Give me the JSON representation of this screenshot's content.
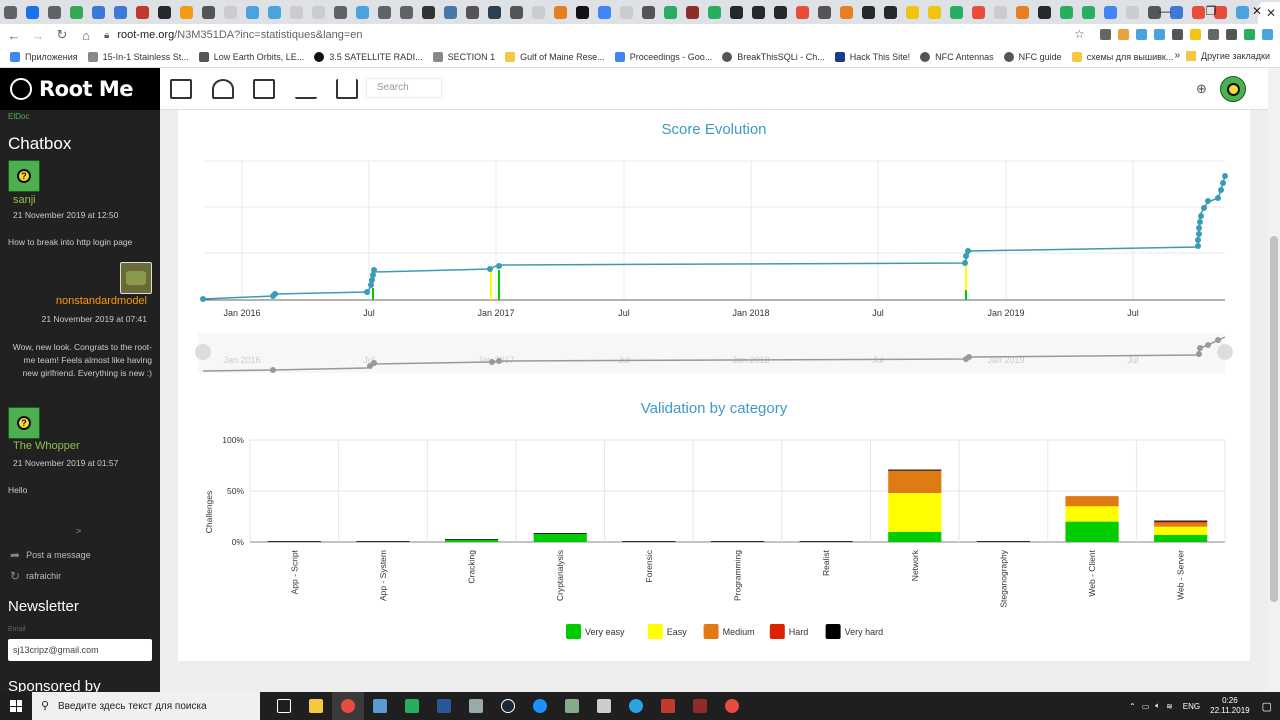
{
  "browser": {
    "url_host": "root-me.org",
    "url_path": "/N3M351DA?inc=statistiques&lang=en",
    "bookmarks": [
      "Приложения",
      "15-In-1 Stainless St...",
      "Low Earth Orbits, LE...",
      "3.5 SATELLITE RADI...",
      "SECTION 1",
      "Gulf of Maine Rese...",
      "Proceedings - Goo...",
      "BreakThisSQLi - Ch...",
      "Hack This Site!",
      "NFC Antennas",
      "NFC guide",
      "схемы для вышивк..."
    ],
    "bookmarks_more": "»",
    "bookmarks_other": "Другие закладки",
    "window_controls": [
      "—",
      "❐",
      "✕"
    ]
  },
  "site": {
    "brand": "Root Me",
    "user_tag": "ElDoc",
    "search_placeholder": "Search"
  },
  "chatbox": {
    "title": "Chatbox",
    "messages": [
      {
        "user": "sanji",
        "date": "21 November 2019 at 12:50",
        "text": "How to break into http login page"
      },
      {
        "user": "nonstandardmodel",
        "date": "21 November 2019 at 07:41",
        "text": "Wow, new look. Congrats to the root-me team! Feels almost like having new girlfriend. Everything is new :)"
      },
      {
        "user": "The Whopper",
        "date": "21 November 2019 at 01:57",
        "text": "Hello"
      }
    ],
    "more": ">",
    "post_label": "Post a message",
    "refresh_label": "rafraichir"
  },
  "newsletter": {
    "title": "Newsletter",
    "email_label": "Email",
    "email_value": "sj13cripz@gmail.com"
  },
  "sponsored_title": "Sponsored by",
  "score_chart": {
    "title": "Score Evolution",
    "x_ticks": [
      "Jan 2016",
      "Jul",
      "Jan 2017",
      "Jul",
      "Jan 2018",
      "Jul",
      "Jan 2019",
      "Jul"
    ]
  },
  "chart_data": {
    "type": "bar",
    "title": "Validation by category",
    "ylabel": "Challenges",
    "y_ticks": [
      "100%",
      "50%",
      "0%"
    ],
    "ylim": [
      0,
      100
    ],
    "categories": [
      "App - Script",
      "App - System",
      "Cracking",
      "Cryptanalysis",
      "Forensic",
      "Programming",
      "Realist",
      "Network",
      "Steganography",
      "Web - Client",
      "Web - Server"
    ],
    "series": [
      {
        "name": "Very easy",
        "color": "#00cc00",
        "values": [
          0,
          0,
          2,
          8,
          0,
          0,
          0,
          10,
          0,
          20,
          7
        ]
      },
      {
        "name": "Easy",
        "color": "#ffff00",
        "values": [
          0,
          0,
          0,
          0,
          0,
          0,
          0,
          38,
          0,
          15,
          8
        ]
      },
      {
        "name": "Medium",
        "color": "#e07b14",
        "values": [
          0,
          0,
          0,
          0,
          0,
          0,
          0,
          22,
          0,
          10,
          4
        ]
      },
      {
        "name": "Hard",
        "color": "#dd2200",
        "values": [
          0,
          0,
          0,
          0,
          0,
          0,
          0,
          0,
          0,
          0,
          1
        ]
      },
      {
        "name": "Very hard",
        "color": "#000000",
        "values": [
          0.8,
          0.8,
          0.8,
          0.8,
          0.8,
          0.8,
          0.8,
          1,
          0.8,
          0,
          1
        ]
      }
    ],
    "legend_position": "bottom"
  },
  "taskbar": {
    "search_placeholder": "Введите здесь текст для поиска",
    "lang": "ENG",
    "time": "0:26",
    "date": "22.11.2019"
  }
}
